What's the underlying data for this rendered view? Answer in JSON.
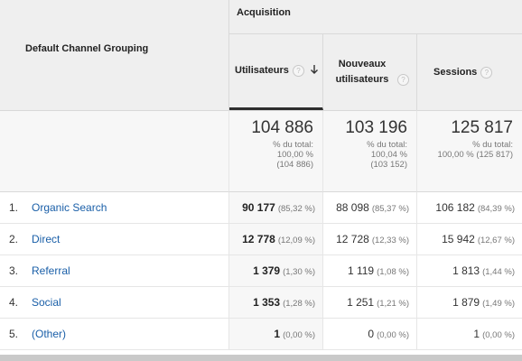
{
  "header": {
    "dimension_label": "Default Channel Grouping",
    "group_label": "Acquisition",
    "columns": [
      {
        "label": "Utilisateurs",
        "help": "?"
      },
      {
        "label": "Nouveaux utilisateurs",
        "help": "?"
      },
      {
        "label": "Sessions",
        "help": "?"
      }
    ]
  },
  "totals": [
    {
      "value": "104 886",
      "line1": "% du total:",
      "line2": "100,00 %",
      "line3": "(104 886)"
    },
    {
      "value": "103 196",
      "line1": "% du total:",
      "line2": "100,04 %",
      "line3": "(103 152)"
    },
    {
      "value": "125 817",
      "line1": "% du total:",
      "line2": "100,00 % (125 817)",
      "line3": ""
    }
  ],
  "rows": [
    {
      "index": "1.",
      "channel": "Organic Search",
      "users": "90 177",
      "users_pct": "(85,32 %)",
      "new_users": "88 098",
      "new_users_pct": "(85,37 %)",
      "sessions": "106 182",
      "sessions_pct": "(84,39 %)"
    },
    {
      "index": "2.",
      "channel": "Direct",
      "users": "12 778",
      "users_pct": "(12,09 %)",
      "new_users": "12 728",
      "new_users_pct": "(12,33 %)",
      "sessions": "15 942",
      "sessions_pct": "(12,67 %)"
    },
    {
      "index": "3.",
      "channel": "Referral",
      "users": "1 379",
      "users_pct": "(1,30 %)",
      "new_users": "1 119",
      "new_users_pct": "(1,08 %)",
      "sessions": "1 813",
      "sessions_pct": "(1,44 %)"
    },
    {
      "index": "4.",
      "channel": "Social",
      "users": "1 353",
      "users_pct": "(1,28 %)",
      "new_users": "1 251",
      "new_users_pct": "(1,21 %)",
      "sessions": "1 879",
      "sessions_pct": "(1,49 %)"
    },
    {
      "index": "5.",
      "channel": "(Other)",
      "users": "1",
      "users_pct": "(0,00 %)",
      "new_users": "0",
      "new_users_pct": "(0,00 %)",
      "sessions": "1",
      "sessions_pct": "(0,00 %)"
    }
  ],
  "colors": {
    "link": "#1a5fa8",
    "header_bg": "#efefef",
    "totals_bg": "#f7f7f7"
  },
  "icons": {
    "sort": "arrow-down-icon",
    "help": "help-circle-icon"
  }
}
